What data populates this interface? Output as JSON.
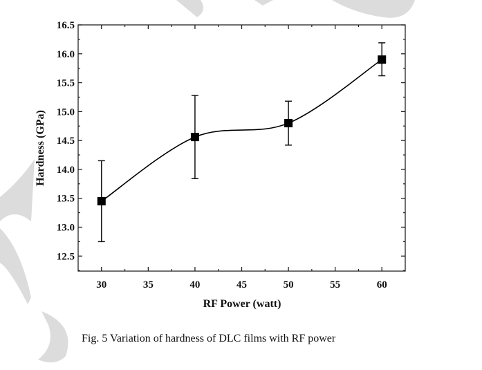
{
  "chart_data": {
    "type": "line",
    "title": "",
    "xlabel": "RF Power (watt)",
    "ylabel": "Hardness (GPa)",
    "xlim": [
      27.5,
      62.5
    ],
    "ylim": [
      12.24,
      16.5
    ],
    "xticks": [
      30,
      35,
      40,
      45,
      50,
      55,
      60
    ],
    "yticks": [
      12.5,
      13.0,
      13.5,
      14.0,
      14.5,
      15.0,
      15.5,
      16.0,
      16.5
    ],
    "xtick_labels": [
      "30",
      "35",
      "40",
      "45",
      "50",
      "55",
      "60"
    ],
    "ytick_labels": [
      "12.5",
      "13.0",
      "13.5",
      "14.0",
      "14.5",
      "15.0",
      "15.5",
      "16.0",
      "16.5"
    ],
    "grid": false,
    "series": [
      {
        "name": "Hardness",
        "marker": "square",
        "line": "smooth",
        "color": "#000000",
        "x": [
          30,
          40,
          50,
          60
        ],
        "y": [
          13.45,
          14.56,
          14.8,
          15.9
        ],
        "error_low": [
          12.75,
          13.84,
          14.42,
          15.62
        ],
        "error_high": [
          14.15,
          15.28,
          15.18,
          16.19
        ]
      }
    ]
  },
  "caption": "Fig. 5  Variation of hardness of DLC films with RF power",
  "colors": {
    "watermark": "#d9d9d9",
    "ink": "#000000"
  }
}
